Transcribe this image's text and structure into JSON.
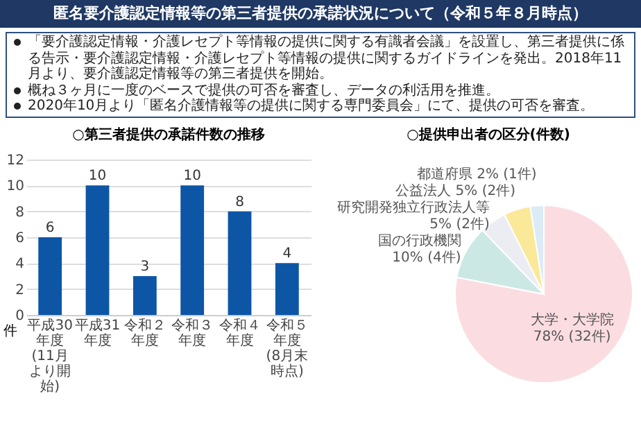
{
  "chart_data": [
    {
      "type": "other",
      "title": "匿名要介護認定情報等の第三者提供の承諾状況について（令和５年８月時点）",
      "annotations": [
        "「要介護認定情報・介護レセプト等情報の提供に関する有識者会議」を設置し、第三者提供に係る告示・要介護認定情報・介護レセプト等情報の提供に関するガイドラインを発出。2018年11月より、要介護認定情報等の第三者提供を開始。",
        "概ね３ヶ月に一度のベースで提供の可否を審査し、データの利活用を推進。",
        "2020年10月より「匿名介護情報等の提供に関する専門委員会」にて、提供の可否を審査。"
      ]
    },
    {
      "type": "bar",
      "title": "○第三者提供の承諾件数の推移",
      "ylabel": "件",
      "categories": [
        "平成30年度\n(11月より開始)",
        "平成31年度",
        "令和２年度",
        "令和３年度",
        "令和４年度",
        "令和５年度\n(8月末時点)"
      ],
      "values": [
        6,
        10,
        3,
        10,
        8,
        4
      ],
      "color": "#0d56a6",
      "ylim": [
        0,
        12
      ],
      "yticks": [
        0,
        2,
        4,
        6,
        8,
        10,
        12
      ],
      "grid": "y",
      "data_labels": true
    },
    {
      "type": "pie",
      "title": "○提供申出者の区分(件数)",
      "categories": [
        "大学・大学院",
        "国の行政機関",
        "研究開発独立行政法人等",
        "公益法人",
        "都道府県"
      ],
      "values": [
        32,
        4,
        2,
        2,
        1
      ],
      "value_labels": [
        "78% (32件)",
        "10% (4件)",
        "5% (2件)",
        "5% (2件)",
        "2% (1件)"
      ],
      "colors": [
        "#fbdde1",
        "#cbe8e4",
        "#ececf3",
        "#fbe99a",
        "#dcebf8"
      ]
    }
  ]
}
